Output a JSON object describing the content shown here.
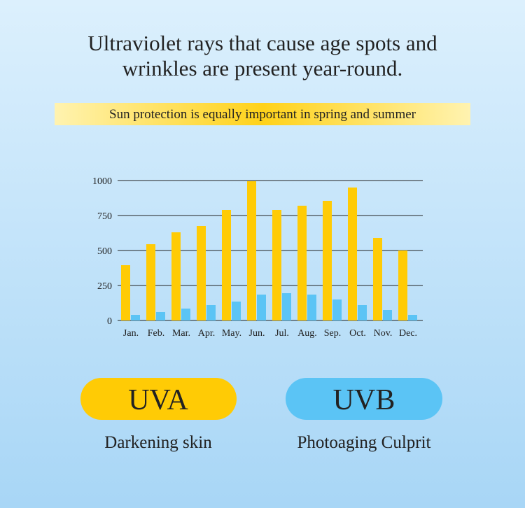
{
  "chart_data": {
    "type": "bar",
    "title": "Ultraviolet rays that cause age spots and wrinkles are present year-round.",
    "subtitle": "Sun protection is equally important in spring and summer",
    "categories": [
      "Jan.",
      "Feb.",
      "Mar.",
      "Apr.",
      "May.",
      "Jun.",
      "Jul.",
      "Aug.",
      "Sep.",
      "Oct.",
      "Nov.",
      "Dec."
    ],
    "series": [
      {
        "name": "UVA",
        "description": "Darkening skin",
        "color": "#ffcb05",
        "values": [
          395,
          545,
          630,
          675,
          790,
          995,
          790,
          820,
          855,
          950,
          590,
          500
        ]
      },
      {
        "name": "UVB",
        "description": "Photoaging Culprit",
        "color": "#5bc4f5",
        "values": [
          40,
          60,
          85,
          110,
          135,
          185,
          195,
          185,
          150,
          110,
          75,
          40
        ]
      }
    ],
    "ylim": [
      0,
      1000
    ],
    "yticks": [
      0,
      250,
      500,
      750,
      1000
    ],
    "grid": true
  }
}
